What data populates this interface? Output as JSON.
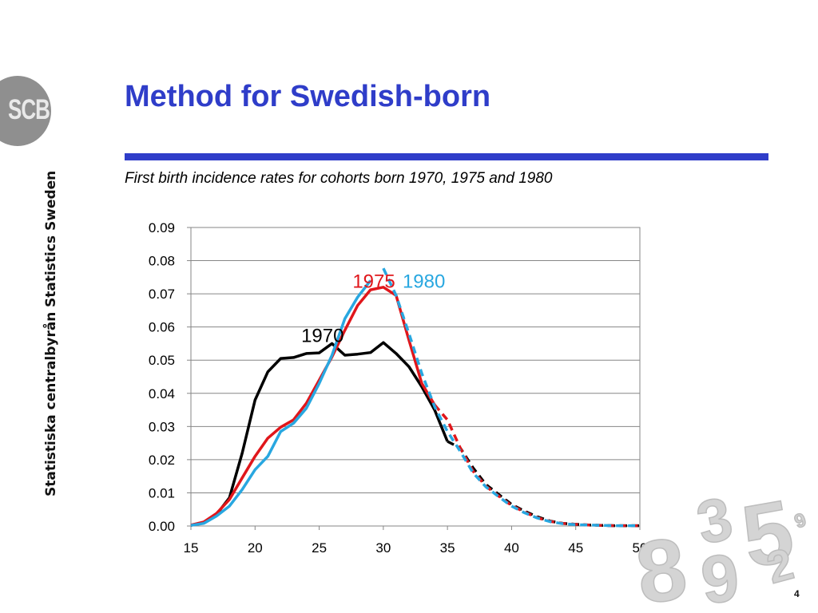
{
  "slide": {
    "title": "Method for Swedish-born",
    "subtitle": "First birth incidence rates for cohorts born 1970, 1975 and 1980",
    "page_number": "4",
    "accent_color": "#2f3dc9"
  },
  "branding": {
    "logo_text": "SCB",
    "org_name_en": "Statistics Sweden",
    "org_name_sv": "Statistiska centralbyrån",
    "decoration_digits": "835929"
  },
  "chart_data": {
    "type": "line",
    "title": "",
    "xlabel": "",
    "ylabel": "",
    "xlim": [
      15,
      50
    ],
    "ylim": [
      0,
      0.09
    ],
    "x_ticks": [
      "15",
      "20",
      "25",
      "30",
      "35",
      "40",
      "45",
      "50"
    ],
    "y_ticks": [
      "0.00",
      "0.01",
      "0.02",
      "0.03",
      "0.04",
      "0.05",
      "0.06",
      "0.07",
      "0.08",
      "0.09"
    ],
    "grid": "horizontal",
    "series": [
      {
        "name": "1970",
        "color": "#000000",
        "style": "solid",
        "points": [
          [
            15,
            0.0002
          ],
          [
            16,
            0.001
          ],
          [
            17,
            0.0035
          ],
          [
            18,
            0.0085
          ],
          [
            19,
            0.022
          ],
          [
            20,
            0.038
          ],
          [
            21,
            0.0465
          ],
          [
            22,
            0.0505
          ],
          [
            23,
            0.0508
          ],
          [
            24,
            0.052
          ],
          [
            25,
            0.0522
          ],
          [
            26,
            0.055
          ],
          [
            27,
            0.0515
          ],
          [
            28,
            0.0518
          ],
          [
            29,
            0.0523
          ],
          [
            30,
            0.0553
          ],
          [
            31,
            0.052
          ],
          [
            32,
            0.048
          ],
          [
            33,
            0.042
          ],
          [
            34,
            0.035
          ],
          [
            35,
            0.0255
          ]
        ]
      },
      {
        "name": "1970",
        "color": "#000000",
        "style": "dashed",
        "points": [
          [
            35,
            0.0255
          ],
          [
            36,
            0.0235
          ],
          [
            37,
            0.0175
          ],
          [
            38,
            0.0125
          ],
          [
            39,
            0.0095
          ],
          [
            40,
            0.0065
          ],
          [
            41,
            0.0045
          ],
          [
            42,
            0.0028
          ],
          [
            43,
            0.0015
          ],
          [
            44,
            0.0008
          ],
          [
            45,
            0.0005
          ],
          [
            46,
            0.0003
          ],
          [
            47,
            0.0002
          ],
          [
            48,
            0.0001
          ],
          [
            49,
            0.0001
          ],
          [
            50,
            0.0001
          ]
        ]
      },
      {
        "name": "1975",
        "color": "#e0161b",
        "style": "solid",
        "points": [
          [
            15,
            0.0003
          ],
          [
            16,
            0.0012
          ],
          [
            17,
            0.0038
          ],
          [
            18,
            0.008
          ],
          [
            19,
            0.0145
          ],
          [
            20,
            0.021
          ],
          [
            21,
            0.0265
          ],
          [
            22,
            0.0298
          ],
          [
            23,
            0.032
          ],
          [
            24,
            0.037
          ],
          [
            25,
            0.044
          ],
          [
            26,
            0.051
          ],
          [
            27,
            0.059
          ],
          [
            28,
            0.0665
          ],
          [
            29,
            0.0712
          ],
          [
            30,
            0.072
          ],
          [
            31,
            0.0695
          ],
          [
            32,
            0.056
          ],
          [
            33,
            0.043
          ],
          [
            34,
            0.0365
          ]
        ]
      },
      {
        "name": "1975",
        "color": "#e0161b",
        "style": "dashed",
        "points": [
          [
            34,
            0.0365
          ],
          [
            35,
            0.032
          ],
          [
            36,
            0.0235
          ],
          [
            37,
            0.0165
          ],
          [
            38,
            0.012
          ],
          [
            39,
            0.009
          ],
          [
            40,
            0.0062
          ],
          [
            41,
            0.0042
          ],
          [
            42,
            0.0025
          ],
          [
            43,
            0.0014
          ],
          [
            44,
            0.0008
          ],
          [
            45,
            0.0005
          ],
          [
            46,
            0.0003
          ],
          [
            47,
            0.0002
          ],
          [
            48,
            0.0001
          ],
          [
            49,
            0.0001
          ],
          [
            50,
            0.0001
          ]
        ]
      },
      {
        "name": "1980",
        "color": "#28a7e0",
        "style": "solid",
        "points": [
          [
            15,
            0.0002
          ],
          [
            16,
            0.0008
          ],
          [
            17,
            0.003
          ],
          [
            18,
            0.006
          ],
          [
            19,
            0.011
          ],
          [
            20,
            0.017
          ],
          [
            21,
            0.021
          ],
          [
            22,
            0.0285
          ],
          [
            23,
            0.031
          ],
          [
            24,
            0.0355
          ],
          [
            25,
            0.043
          ],
          [
            26,
            0.0515
          ],
          [
            27,
            0.0625
          ],
          [
            28,
            0.069
          ],
          [
            29,
            0.074
          ]
        ]
      },
      {
        "name": "1980",
        "color": "#28a7e0",
        "style": "dashed",
        "points": [
          [
            30,
            0.0777
          ],
          [
            31,
            0.0695
          ],
          [
            32,
            0.058
          ],
          [
            33,
            0.046
          ],
          [
            34,
            0.036
          ],
          [
            35,
            0.0285
          ],
          [
            36,
            0.0225
          ],
          [
            37,
            0.016
          ],
          [
            38,
            0.0118
          ],
          [
            39,
            0.0088
          ],
          [
            40,
            0.006
          ],
          [
            41,
            0.004
          ],
          [
            42,
            0.0024
          ],
          [
            43,
            0.0013
          ],
          [
            44,
            0.0007
          ],
          [
            45,
            0.0004
          ],
          [
            46,
            0.0003
          ],
          [
            47,
            0.0002
          ],
          [
            48,
            0.0001
          ],
          [
            49,
            0.0001
          ],
          [
            50,
            0.0001
          ]
        ]
      }
    ],
    "annotations": [
      {
        "text": "1970",
        "color": "#000000",
        "x": 23.6,
        "y": 0.0555
      },
      {
        "text": "1975",
        "color": "#e0161b",
        "x": 27.6,
        "y": 0.0718
      },
      {
        "text": "1980",
        "color": "#28a7e0",
        "x": 31.5,
        "y": 0.0718
      }
    ]
  }
}
